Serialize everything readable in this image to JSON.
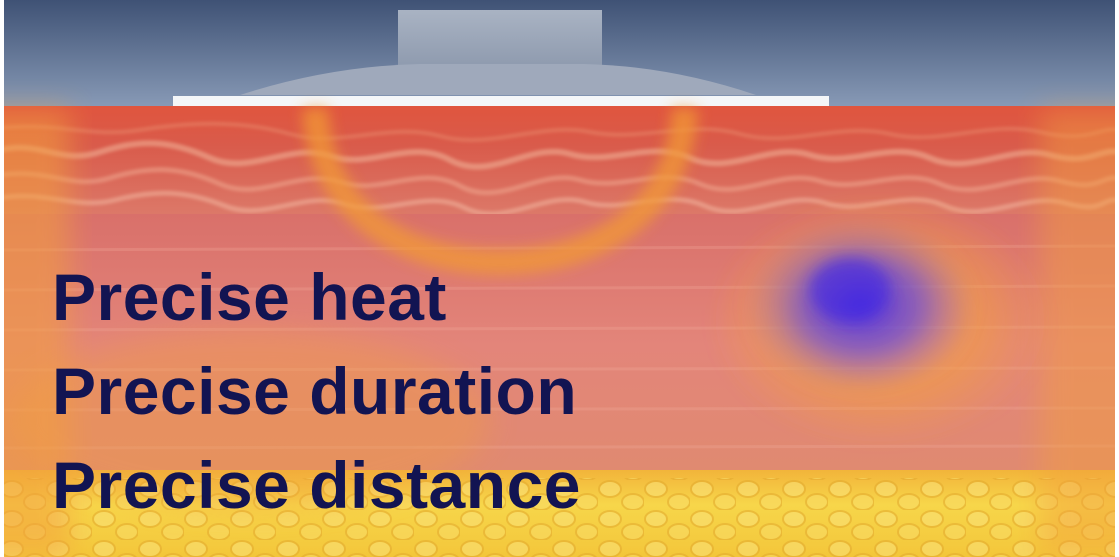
{
  "caption": {
    "lines": [
      "Precise heat",
      "Precise duration",
      "Precise distance"
    ]
  },
  "colors": {
    "text": "#121452",
    "background_top": "#3d4f72",
    "dermis": "#d9534a",
    "fat_layer": "#f6cf3f",
    "heat_glow": "#f4a33a",
    "treatment_zone": "#5b3fd9",
    "applicator": "#9aa6b8"
  },
  "illustration": {
    "applicator": "treatment-applicator-icon",
    "heat_arc": "heat-arc-icon",
    "target_zone": "treatment-zone-icon"
  }
}
